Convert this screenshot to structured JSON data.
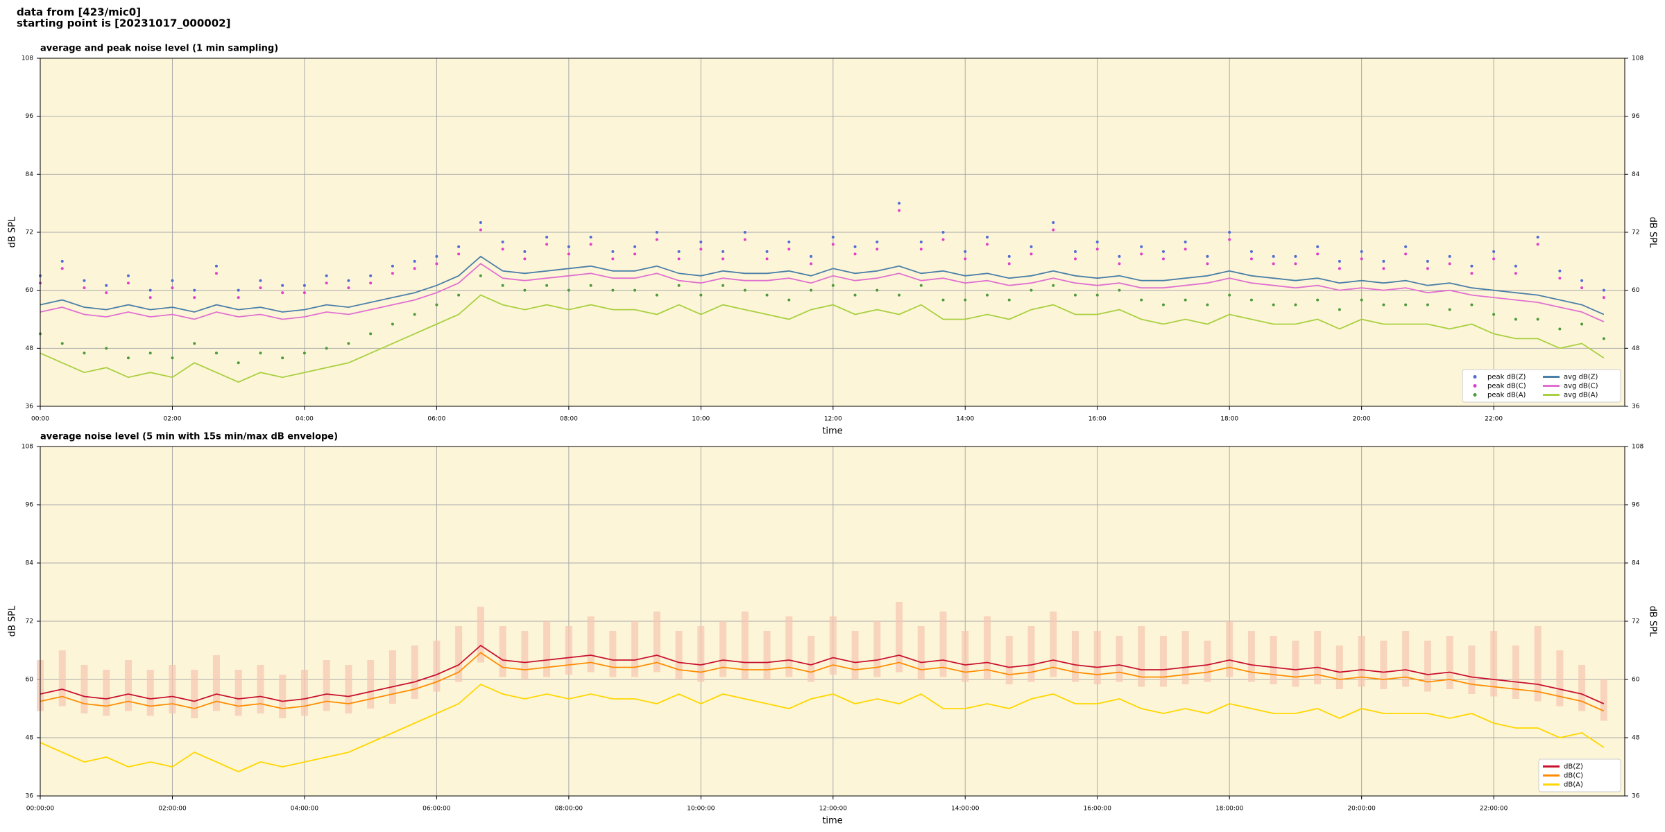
{
  "suptitle": [
    "data from [423/mic0]",
    "starting point is [20231017_000002]"
  ],
  "chart_data": [
    {
      "type": "combo",
      "title": "average and peak noise level (1 min sampling)",
      "xlabel": "time",
      "ylabel": "dB SPL",
      "xlim": [
        "00:00",
        "23:59"
      ],
      "xticks": [
        "00:00",
        "02:00",
        "04:00",
        "06:00",
        "08:00",
        "10:00",
        "12:00",
        "14:00",
        "16:00",
        "18:00",
        "20:00",
        "22:00"
      ],
      "ylim": [
        36,
        108
      ],
      "yticks": [
        36,
        48,
        60,
        72,
        84,
        96,
        108
      ],
      "grid": true,
      "background": "#fdf5d8",
      "legend_loc": "lower right",
      "legend_columns": 2,
      "x": [
        "00:00",
        "00:20",
        "00:40",
        "01:00",
        "01:20",
        "01:40",
        "02:00",
        "02:20",
        "02:40",
        "03:00",
        "03:20",
        "03:40",
        "04:00",
        "04:20",
        "04:40",
        "05:00",
        "05:20",
        "05:40",
        "06:00",
        "06:20",
        "06:40",
        "07:00",
        "07:20",
        "07:40",
        "08:00",
        "08:20",
        "08:40",
        "09:00",
        "09:20",
        "09:40",
        "10:00",
        "10:20",
        "10:40",
        "11:00",
        "11:20",
        "11:40",
        "12:00",
        "12:20",
        "12:40",
        "13:00",
        "13:20",
        "13:40",
        "14:00",
        "14:20",
        "14:40",
        "15:00",
        "15:20",
        "15:40",
        "16:00",
        "16:20",
        "16:40",
        "17:00",
        "17:20",
        "17:40",
        "18:00",
        "18:20",
        "18:40",
        "19:00",
        "19:20",
        "19:40",
        "20:00",
        "20:20",
        "20:40",
        "21:00",
        "21:20",
        "21:40",
        "22:00",
        "22:20",
        "22:40",
        "23:00",
        "23:20",
        "23:40"
      ],
      "series": [
        {
          "name": "peak dB(Z)",
          "style": "points",
          "color": "#4f6bd6",
          "values": [
            63,
            66,
            62,
            61,
            63,
            60,
            62,
            60,
            65,
            60,
            62,
            61,
            61,
            63,
            62,
            63,
            65,
            66,
            67,
            69,
            74,
            70,
            68,
            71,
            69,
            71,
            68,
            69,
            72,
            68,
            70,
            68,
            72,
            68,
            70,
            67,
            71,
            69,
            70,
            78,
            70,
            72,
            68,
            71,
            67,
            69,
            74,
            68,
            70,
            67,
            69,
            68,
            70,
            67,
            72,
            68,
            67,
            67,
            69,
            66,
            68,
            66,
            69,
            66,
            67,
            65,
            68,
            65,
            71,
            64,
            62,
            60
          ]
        },
        {
          "name": "peak dB(C)",
          "style": "points",
          "color": "#e040c8",
          "values": [
            61.5,
            64.5,
            60.5,
            59.5,
            61.5,
            58.5,
            60.5,
            58.5,
            63.5,
            58.5,
            60.5,
            59.5,
            59.5,
            61.5,
            60.5,
            61.5,
            63.5,
            64.5,
            65.5,
            67.5,
            72.5,
            68.5,
            66.5,
            69.5,
            67.5,
            69.5,
            66.5,
            67.5,
            70.5,
            66.5,
            68.5,
            66.5,
            70.5,
            66.5,
            68.5,
            65.5,
            69.5,
            67.5,
            68.5,
            76.5,
            68.5,
            70.5,
            66.5,
            69.5,
            65.5,
            67.5,
            72.5,
            66.5,
            68.5,
            65.5,
            67.5,
            66.5,
            68.5,
            65.5,
            70.5,
            66.5,
            65.5,
            65.5,
            67.5,
            64.5,
            66.5,
            64.5,
            67.5,
            64.5,
            65.5,
            63.5,
            66.5,
            63.5,
            69.5,
            62.5,
            60.5,
            58.5
          ]
        },
        {
          "name": "peak dB(A)",
          "style": "points",
          "color": "#4c9a3a",
          "values": [
            51,
            49,
            47,
            48,
            46,
            47,
            46,
            49,
            47,
            45,
            47,
            46,
            47,
            48,
            49,
            51,
            53,
            55,
            57,
            59,
            63,
            61,
            60,
            61,
            60,
            61,
            60,
            60,
            59,
            61,
            59,
            61,
            60,
            59,
            58,
            60,
            61,
            59,
            60,
            59,
            61,
            58,
            58,
            59,
            58,
            60,
            61,
            59,
            59,
            60,
            58,
            57,
            58,
            57,
            59,
            58,
            57,
            57,
            58,
            56,
            58,
            57,
            57,
            57,
            56,
            57,
            55,
            54,
            54,
            52,
            53,
            50
          ]
        },
        {
          "name": "avg dB(Z)",
          "style": "line",
          "color": "#4a7fa8",
          "values": [
            57,
            58,
            56.5,
            56,
            57,
            56,
            56.5,
            55.5,
            57,
            56,
            56.5,
            55.5,
            56,
            57,
            56.5,
            57.5,
            58.5,
            59.5,
            61,
            63,
            67,
            64,
            63.5,
            64,
            64.5,
            65,
            64,
            64,
            65,
            63.5,
            63,
            64,
            63.5,
            63.5,
            64,
            63,
            64.5,
            63.5,
            64,
            65,
            63.5,
            64,
            63,
            63.5,
            62.5,
            63,
            64,
            63,
            62.5,
            63,
            62,
            62,
            62.5,
            63,
            64,
            63,
            62.5,
            62,
            62.5,
            61.5,
            62,
            61.5,
            62,
            61,
            61.5,
            60.5,
            60,
            59.5,
            59,
            58,
            57,
            55
          ]
        },
        {
          "name": "avg dB(C)",
          "style": "line",
          "color": "#e070d0",
          "values": [
            55.5,
            56.5,
            55,
            54.5,
            55.5,
            54.5,
            55,
            54,
            55.5,
            54.5,
            55,
            54,
            54.5,
            55.5,
            55,
            56,
            57,
            58,
            59.5,
            61.5,
            65.5,
            62.5,
            62,
            62.5,
            63,
            63.5,
            62.5,
            62.5,
            63.5,
            62,
            61.5,
            62.5,
            62,
            62,
            62.5,
            61.5,
            63,
            62,
            62.5,
            63.5,
            62,
            62.5,
            61.5,
            62,
            61,
            61.5,
            62.5,
            61.5,
            61,
            61.5,
            60.5,
            60.5,
            61,
            61.5,
            62.5,
            61.5,
            61,
            60.5,
            61,
            60,
            60.5,
            60,
            60.5,
            59.5,
            60,
            59,
            58.5,
            58,
            57.5,
            56.5,
            55.5,
            53.5
          ]
        },
        {
          "name": "avg dB(A)",
          "style": "line",
          "color": "#a8d040",
          "values": [
            47,
            45,
            43,
            44,
            42,
            43,
            42,
            45,
            43,
            41,
            43,
            42,
            43,
            44,
            45,
            47,
            49,
            51,
            53,
            55,
            59,
            57,
            56,
            57,
            56,
            57,
            56,
            56,
            55,
            57,
            55,
            57,
            56,
            55,
            54,
            56,
            57,
            55,
            56,
            55,
            57,
            54,
            54,
            55,
            54,
            56,
            57,
            55,
            55,
            56,
            54,
            53,
            54,
            53,
            55,
            54,
            53,
            53,
            54,
            52,
            54,
            53,
            53,
            53,
            52,
            53,
            51,
            50,
            50,
            48,
            49,
            46
          ]
        }
      ]
    },
    {
      "type": "line",
      "title": "average noise level (5 min with 15s min/max dB envelope)",
      "xlabel": "time",
      "ylabel": "dB SPL",
      "xlim": [
        "00:00:00",
        "23:59:00"
      ],
      "xticks": [
        "00:00:00",
        "02:00:00",
        "04:00:00",
        "06:00:00",
        "08:00:00",
        "10:00:00",
        "12:00:00",
        "14:00:00",
        "16:00:00",
        "18:00:00",
        "20:00:00",
        "22:00:00"
      ],
      "ylim": [
        36,
        108
      ],
      "yticks": [
        36,
        48,
        60,
        72,
        84,
        96,
        108
      ],
      "grid": true,
      "background": "#fdf5d8",
      "legend_loc": "lower right",
      "legend_columns": 1,
      "x": [
        "00:00",
        "00:20",
        "00:40",
        "01:00",
        "01:20",
        "01:40",
        "02:00",
        "02:20",
        "02:40",
        "03:00",
        "03:20",
        "03:40",
        "04:00",
        "04:20",
        "04:40",
        "05:00",
        "05:20",
        "05:40",
        "06:00",
        "06:20",
        "06:40",
        "07:00",
        "07:20",
        "07:40",
        "08:00",
        "08:20",
        "08:40",
        "09:00",
        "09:20",
        "09:40",
        "10:00",
        "10:20",
        "10:40",
        "11:00",
        "11:20",
        "11:40",
        "12:00",
        "12:20",
        "12:40",
        "13:00",
        "13:20",
        "13:40",
        "14:00",
        "14:20",
        "14:40",
        "15:00",
        "15:20",
        "15:40",
        "16:00",
        "16:20",
        "16:40",
        "17:00",
        "17:20",
        "17:40",
        "18:00",
        "18:20",
        "18:40",
        "19:00",
        "19:20",
        "19:40",
        "20:00",
        "20:20",
        "20:40",
        "21:00",
        "21:20",
        "21:40",
        "22:00",
        "22:20",
        "22:40",
        "23:00",
        "23:20",
        "23:40"
      ],
      "envelope": {
        "color": "#f5c6b0",
        "low": [
          53.5,
          54.5,
          53,
          52.5,
          53.5,
          52.5,
          53,
          52,
          53.5,
          52.5,
          53,
          52,
          52.5,
          53.5,
          53,
          54,
          55,
          56,
          57.5,
          59.5,
          63.5,
          60.5,
          60,
          60.5,
          61,
          61.5,
          60.5,
          60.5,
          61.5,
          60,
          59.5,
          60.5,
          60,
          60,
          60.5,
          59.5,
          61,
          60,
          60.5,
          61.5,
          60,
          60.5,
          59.5,
          60,
          59,
          59.5,
          60.5,
          59.5,
          59,
          59.5,
          58.5,
          58.5,
          59,
          59.5,
          60.5,
          59.5,
          59,
          58.5,
          59,
          58,
          58.5,
          58,
          58.5,
          57.5,
          58,
          57,
          56.5,
          56,
          55.5,
          54.5,
          53.5,
          51.5
        ],
        "high": [
          64,
          66,
          63,
          62,
          64,
          62,
          63,
          62,
          65,
          62,
          63,
          61,
          62,
          64,
          63,
          64,
          66,
          67,
          68,
          71,
          75,
          71,
          70,
          72,
          71,
          73,
          70,
          72,
          74,
          70,
          71,
          72,
          74,
          70,
          73,
          69,
          73,
          70,
          72,
          76,
          71,
          74,
          70,
          73,
          69,
          71,
          74,
          70,
          70,
          69,
          71,
          69,
          70,
          68,
          72,
          70,
          69,
          68,
          70,
          67,
          69,
          68,
          70,
          68,
          69,
          67,
          70,
          67,
          71,
          66,
          63,
          60
        ]
      },
      "series": [
        {
          "name": "dB(Z)",
          "color": "#c8102e",
          "values": [
            57,
            58,
            56.5,
            56,
            57,
            56,
            56.5,
            55.5,
            57,
            56,
            56.5,
            55.5,
            56,
            57,
            56.5,
            57.5,
            58.5,
            59.5,
            61,
            63,
            67,
            64,
            63.5,
            64,
            64.5,
            65,
            64,
            64,
            65,
            63.5,
            63,
            64,
            63.5,
            63.5,
            64,
            63,
            64.5,
            63.5,
            64,
            65,
            63.5,
            64,
            63,
            63.5,
            62.5,
            63,
            64,
            63,
            62.5,
            63,
            62,
            62,
            62.5,
            63,
            64,
            63,
            62.5,
            62,
            62.5,
            61.5,
            62,
            61.5,
            62,
            61,
            61.5,
            60.5,
            60,
            59.5,
            59,
            58,
            57,
            55
          ]
        },
        {
          "name": "dB(C)",
          "color": "#ff8c00",
          "values": [
            55.5,
            56.5,
            55,
            54.5,
            55.5,
            54.5,
            55,
            54,
            55.5,
            54.5,
            55,
            54,
            54.5,
            55.5,
            55,
            56,
            57,
            58,
            59.5,
            61.5,
            65.5,
            62.5,
            62,
            62.5,
            63,
            63.5,
            62.5,
            62.5,
            63.5,
            62,
            61.5,
            62.5,
            62,
            62,
            62.5,
            61.5,
            63,
            62,
            62.5,
            63.5,
            62,
            62.5,
            61.5,
            62,
            61,
            61.5,
            62.5,
            61.5,
            61,
            61.5,
            60.5,
            60.5,
            61,
            61.5,
            62.5,
            61.5,
            61,
            60.5,
            61,
            60,
            60.5,
            60,
            60.5,
            59.5,
            60,
            59,
            58.5,
            58,
            57.5,
            56.5,
            55.5,
            53.5
          ]
        },
        {
          "name": "dB(A)",
          "color": "#ffd700",
          "values": [
            47,
            45,
            43,
            44,
            42,
            43,
            42,
            45,
            43,
            41,
            43,
            42,
            43,
            44,
            45,
            47,
            49,
            51,
            53,
            55,
            59,
            57,
            56,
            57,
            56,
            57,
            56,
            56,
            55,
            57,
            55,
            57,
            56,
            55,
            54,
            56,
            57,
            55,
            56,
            55,
            57,
            54,
            54,
            55,
            54,
            56,
            57,
            55,
            55,
            56,
            54,
            53,
            54,
            53,
            55,
            54,
            53,
            53,
            54,
            52,
            54,
            53,
            53,
            53,
            52,
            53,
            51,
            50,
            50,
            48,
            49,
            46
          ]
        }
      ]
    }
  ]
}
